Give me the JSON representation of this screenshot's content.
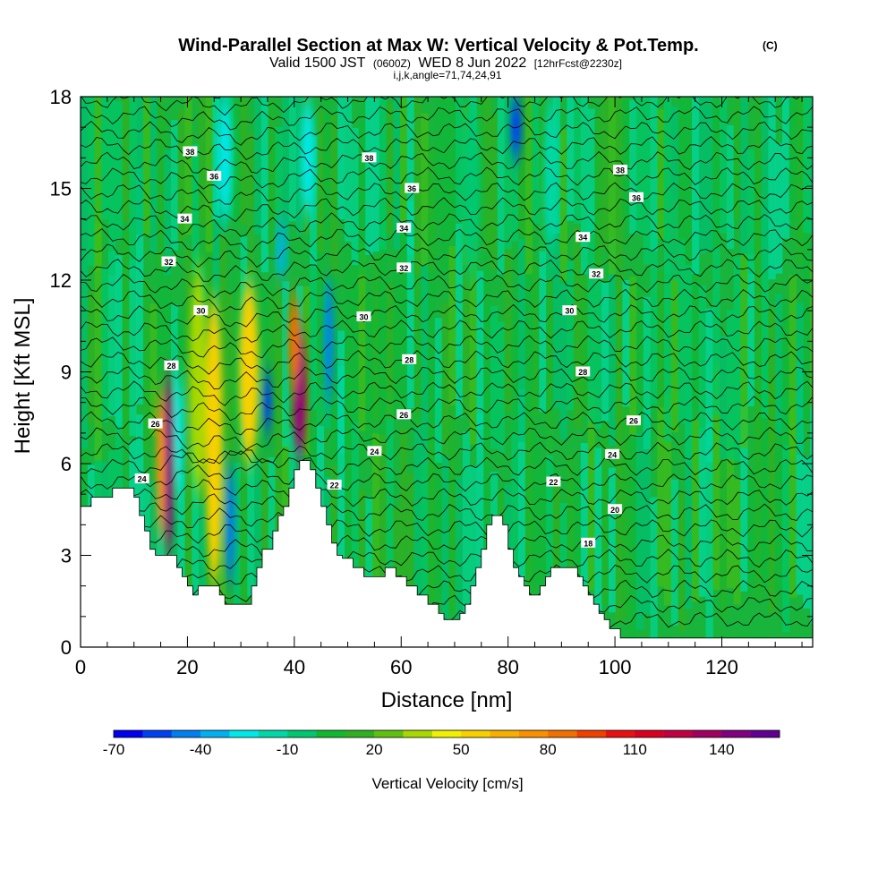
{
  "chart_data": {
    "type": "heatmap",
    "title": "Wind-Parallel Section at Max W: Vertical Velocity & Pot.Temp.",
    "title_suffix": "(C)",
    "subtitle_prefix": "Valid 1500 JST",
    "subtitle_utc": "(0600Z)",
    "subtitle_date": "WED 8 Jun 2022",
    "subtitle_fcst": "[12hrFcst@2230z]",
    "sub_subtitle": "i,j,k,angle=71,74,24,91",
    "xlabel": "Distance [nm]",
    "ylabel": "Height [Kft MSL]",
    "xlim": [
      0,
      137
    ],
    "ylim": [
      0,
      18
    ],
    "x_ticks": [
      0,
      20,
      40,
      60,
      80,
      100,
      120
    ],
    "y_ticks": [
      0,
      3,
      6,
      9,
      12,
      15,
      18
    ],
    "colorbar": {
      "label": "Vertical Velocity [cm/s]",
      "tick_labels": [
        "-70",
        "-40",
        "-10",
        "20",
        "50",
        "80",
        "110",
        "140"
      ],
      "colors": [
        "#0000ee",
        "#0040f0",
        "#0080f0",
        "#00b0f0",
        "#00e8e8",
        "#00d8a8",
        "#00c870",
        "#10b830",
        "#30b020",
        "#60c010",
        "#a8d800",
        "#f0f000",
        "#f8d000",
        "#f8b000",
        "#f89000",
        "#f07000",
        "#f04000",
        "#e81010",
        "#d80020",
        "#c00040",
        "#a00060",
        "#800080",
        "#600090"
      ]
    },
    "contour_field": "Potential Temperature (C)",
    "contour_labels": [
      {
        "value": "38",
        "x": 20.5,
        "y": 16.2
      },
      {
        "value": "38",
        "x": 54,
        "y": 16.0
      },
      {
        "value": "38",
        "x": 101,
        "y": 15.6
      },
      {
        "value": "36",
        "x": 25,
        "y": 15.4
      },
      {
        "value": "36",
        "x": 62,
        "y": 15.0
      },
      {
        "value": "36",
        "x": 104,
        "y": 14.7
      },
      {
        "value": "34",
        "x": 19.5,
        "y": 14.0
      },
      {
        "value": "34",
        "x": 60.5,
        "y": 13.7
      },
      {
        "value": "34",
        "x": 94,
        "y": 13.4
      },
      {
        "value": "32",
        "x": 16.5,
        "y": 12.6
      },
      {
        "value": "32",
        "x": 60.5,
        "y": 12.4
      },
      {
        "value": "32",
        "x": 96.5,
        "y": 12.2
      },
      {
        "value": "30",
        "x": 22.5,
        "y": 11.0
      },
      {
        "value": "30",
        "x": 53,
        "y": 10.8
      },
      {
        "value": "30",
        "x": 91.5,
        "y": 11.0
      },
      {
        "value": "28",
        "x": 17,
        "y": 9.2
      },
      {
        "value": "28",
        "x": 61.5,
        "y": 9.4
      },
      {
        "value": "28",
        "x": 94,
        "y": 9.0
      },
      {
        "value": "26",
        "x": 14,
        "y": 7.3
      },
      {
        "value": "26",
        "x": 60.5,
        "y": 7.6
      },
      {
        "value": "26",
        "x": 103.5,
        "y": 7.4
      },
      {
        "value": "24",
        "x": 11.5,
        "y": 5.5
      },
      {
        "value": "24",
        "x": 55,
        "y": 6.4
      },
      {
        "value": "24",
        "x": 99.5,
        "y": 6.3
      },
      {
        "value": "22",
        "x": 47.5,
        "y": 5.3
      },
      {
        "value": "22",
        "x": 88.5,
        "y": 5.4
      },
      {
        "value": "20",
        "x": 100,
        "y": 4.5
      },
      {
        "value": "18",
        "x": 95,
        "y": 3.4
      }
    ],
    "terrain_profile": {
      "x": [
        0,
        2,
        6,
        9,
        10,
        11,
        12,
        13,
        14,
        17,
        18,
        19,
        20,
        21,
        22,
        25,
        26,
        27,
        28,
        31,
        32,
        33,
        34,
        36,
        37,
        38,
        39,
        40,
        41,
        42,
        43,
        44,
        45,
        46,
        47,
        48,
        49,
        51,
        53,
        55,
        57,
        59,
        61,
        63,
        65,
        67,
        68,
        69,
        70,
        71,
        72,
        73,
        74,
        75,
        76,
        77,
        78,
        79,
        80,
        81,
        82,
        83,
        84,
        85,
        86,
        87,
        88,
        89,
        90,
        93,
        94,
        95,
        96,
        97,
        98,
        99,
        100,
        101,
        102,
        103,
        104,
        110,
        120,
        130,
        137
      ],
      "y": [
        4.6,
        4.9,
        5.2,
        5.2,
        4.9,
        4.3,
        3.8,
        3.2,
        3.0,
        3.0,
        2.6,
        2.3,
        2.0,
        1.7,
        2.0,
        2.0,
        1.7,
        1.4,
        1.4,
        1.4,
        2.0,
        2.6,
        3.2,
        3.8,
        4.3,
        4.6,
        5.2,
        5.8,
        6.1,
        6.1,
        5.8,
        5.2,
        4.6,
        4.0,
        3.4,
        3.0,
        2.9,
        2.6,
        2.3,
        2.3,
        2.6,
        2.3,
        2.0,
        1.7,
        1.4,
        1.1,
        0.9,
        0.9,
        0.9,
        1.1,
        1.4,
        2.0,
        2.6,
        3.2,
        4.0,
        4.3,
        4.3,
        4.0,
        3.2,
        2.6,
        2.3,
        2.0,
        1.7,
        1.7,
        2.0,
        2.3,
        2.6,
        2.6,
        2.6,
        2.3,
        2.0,
        1.7,
        1.4,
        1.1,
        0.9,
        0.6,
        0.6,
        0.3,
        0.3,
        0.3,
        0.3,
        0.3,
        0.3,
        0.3,
        0.3
      ]
    },
    "velocity_features": [
      {
        "x": 16.5,
        "ytop": 9.0,
        "ybot": 3.0,
        "value": 125,
        "width": 1.2
      },
      {
        "x": 15.0,
        "ytop": 8.5,
        "ybot": 3.5,
        "value": 70,
        "width": 1.0
      },
      {
        "x": 41.0,
        "ytop": 10.5,
        "ybot": 6.2,
        "value": 115,
        "width": 1.8
      },
      {
        "x": 40.0,
        "ytop": 11.5,
        "ybot": 8.5,
        "value": 75,
        "width": 1.5
      },
      {
        "x": 25.0,
        "ytop": 11.5,
        "ybot": 2.0,
        "value": 50,
        "width": 2.5
      },
      {
        "x": 31.5,
        "ytop": 12.0,
        "ybot": 6.0,
        "value": 45,
        "width": 3.0
      },
      {
        "x": 22.0,
        "ytop": 12.5,
        "ybot": 5.0,
        "value": 30,
        "width": 2.5
      },
      {
        "x": 35.0,
        "ytop": 9.0,
        "ybot": 7.0,
        "value": -65,
        "width": 1.0
      },
      {
        "x": 28.0,
        "ytop": 6.0,
        "ybot": 2.0,
        "value": -50,
        "width": 1.2
      },
      {
        "x": 18.5,
        "ytop": 9.0,
        "ybot": 5.0,
        "value": -30,
        "width": 1.0
      },
      {
        "x": 46.5,
        "ytop": 12.0,
        "ybot": 8.0,
        "value": -50,
        "width": 1.0
      },
      {
        "x": 81.5,
        "ytop": 18.0,
        "ybot": 16.0,
        "value": -60,
        "width": 1.5
      },
      {
        "x": 27.0,
        "ytop": 18.0,
        "ybot": 14.0,
        "value": -30,
        "width": 2.0
      },
      {
        "x": 37.5,
        "ytop": 14.0,
        "ybot": 12.0,
        "value": -40,
        "width": 1.0
      },
      {
        "x": 42.5,
        "ytop": 18.0,
        "ybot": 14.0,
        "value": -30,
        "width": 2.0
      },
      {
        "x": 88.0,
        "ytop": 18.0,
        "ybot": 13.0,
        "value": -25,
        "width": 2.0
      },
      {
        "x": 73.0,
        "ytop": 18.0,
        "ybot": 12.0,
        "value": -15,
        "width": 3.0
      }
    ]
  }
}
